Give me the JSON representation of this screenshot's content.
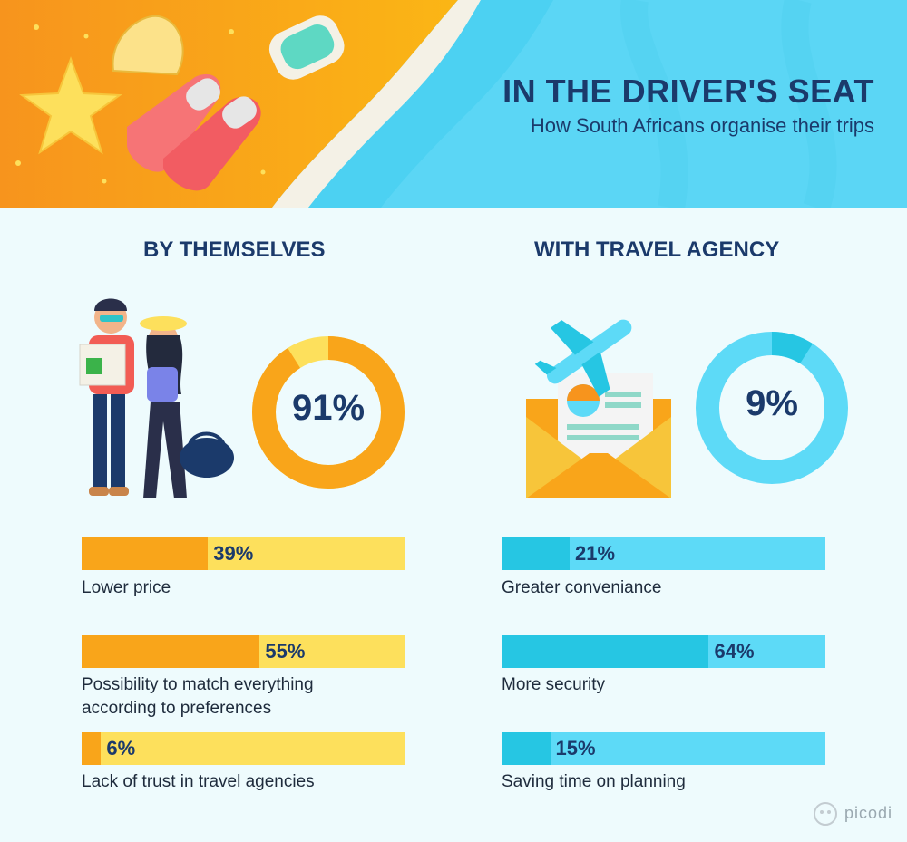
{
  "header": {
    "title": "IN THE DRIVER'S SEAT",
    "subtitle": "How South Africans organise their trips"
  },
  "colors": {
    "orange": "#f9a51a",
    "orange_light": "#fde05c",
    "blue": "#26c6e3",
    "blue_light": "#5ddaf7",
    "navy": "#1b3a6b",
    "background": "#eefbfd"
  },
  "chart_data": [
    {
      "type": "pie",
      "title": "BY THEMSELVES",
      "categories": [
        "BY THEMSELVES",
        "WITH TRAVEL AGENCY"
      ],
      "values": [
        91,
        9
      ],
      "unit": "%"
    },
    {
      "type": "pie",
      "title": "WITH TRAVEL AGENCY",
      "categories": [
        "WITH TRAVEL AGENCY",
        "BY THEMSELVES"
      ],
      "values": [
        9,
        91
      ],
      "unit": "%"
    },
    {
      "type": "bar",
      "title": "BY THEMSELVES",
      "categories": [
        "Lower price",
        "Possibility to match everything according to preferences",
        "Lack of trust in travel agencies"
      ],
      "values": [
        39,
        55,
        6
      ],
      "labels": [
        "39%",
        "55%",
        "6%"
      ],
      "ylim": [
        0,
        100
      ]
    },
    {
      "type": "bar",
      "title": "WITH TRAVEL AGENCY",
      "categories": [
        "Greater conveniance",
        "More security",
        "Saving time on planning"
      ],
      "values": [
        21,
        64,
        15
      ],
      "labels": [
        "21%",
        "64%",
        "15%"
      ],
      "ylim": [
        0,
        100
      ]
    }
  ],
  "logo": {
    "text": "picodi"
  }
}
